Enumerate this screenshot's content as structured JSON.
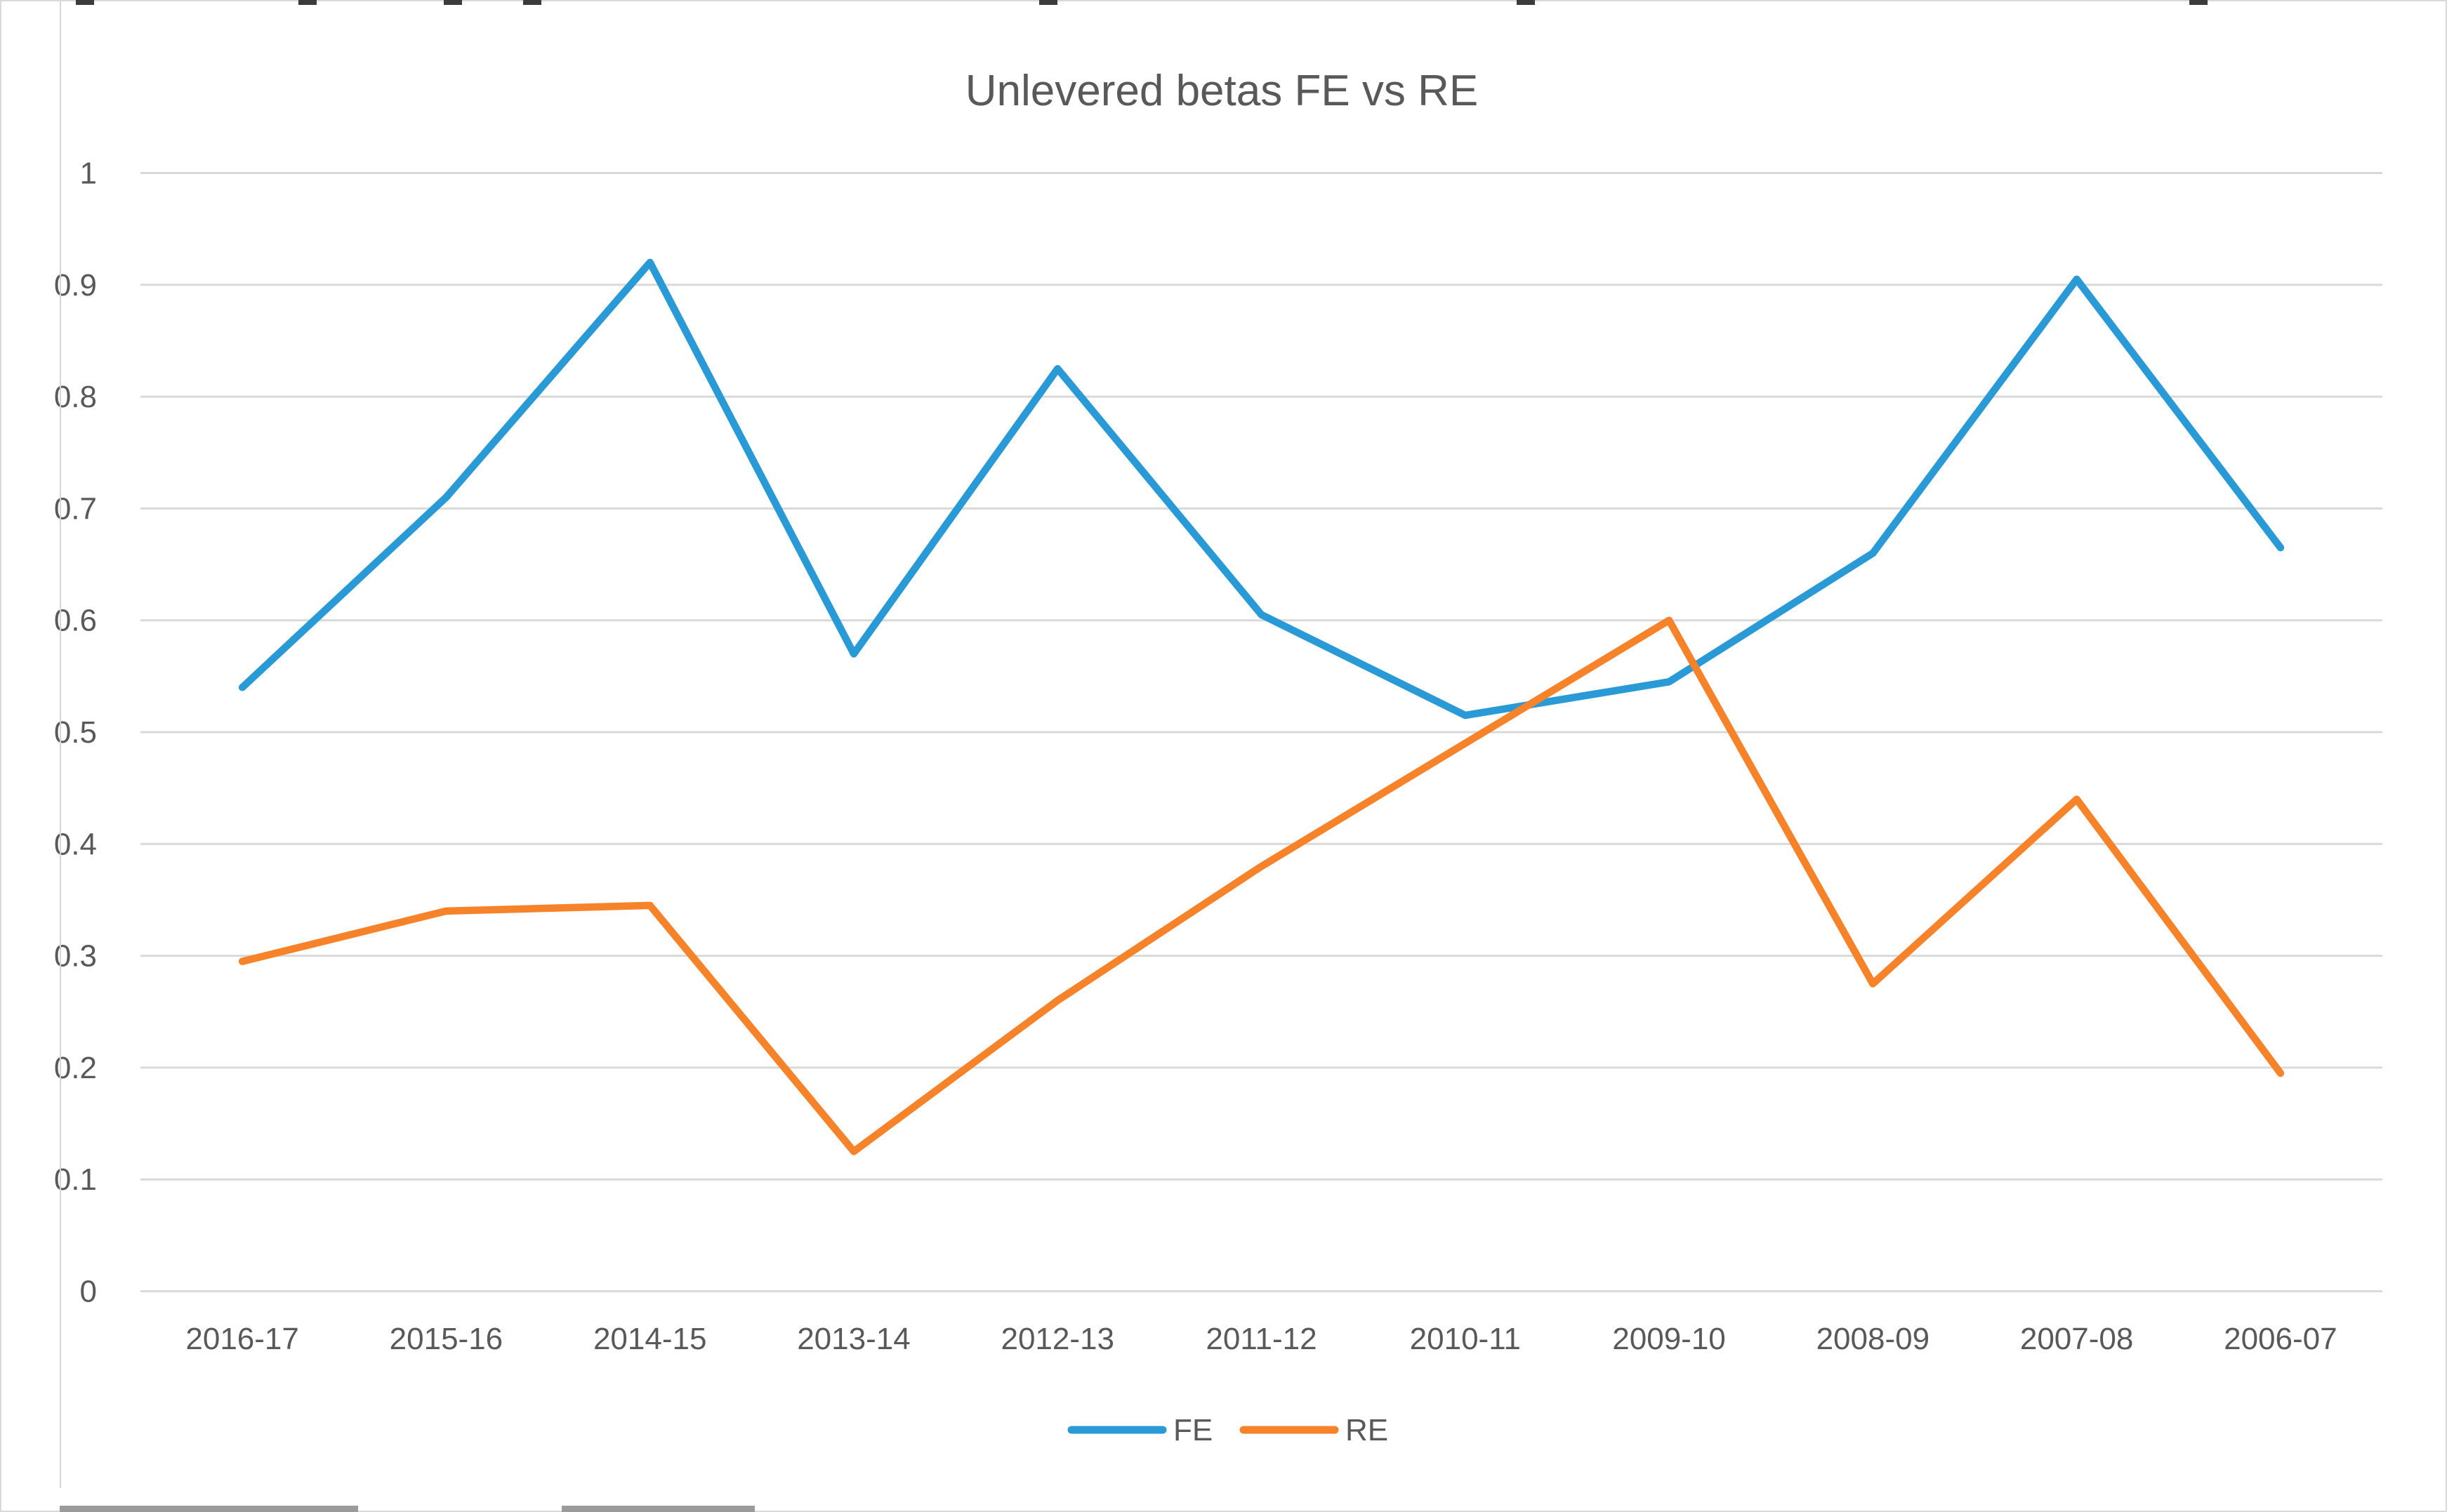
{
  "window": {
    "type": "spreadsheet-chart-screenshot"
  },
  "chart_data": {
    "type": "line",
    "title": "Unlevered betas FE vs RE",
    "xlabel": "",
    "ylabel": "",
    "categories": [
      "2016-17",
      "2015-16",
      "2014-15",
      "2013-14",
      "2012-13",
      "2011-12",
      "2010-11",
      "2009-10",
      "2008-09",
      "2007-08",
      "2006-07"
    ],
    "series": [
      {
        "name": "FE",
        "color": "#299AD6",
        "values": [
          0.54,
          0.71,
          0.92,
          0.57,
          0.825,
          0.605,
          0.515,
          0.545,
          0.66,
          0.905,
          0.665
        ]
      },
      {
        "name": "RE",
        "color": "#F6822A",
        "values": [
          0.295,
          0.34,
          0.345,
          0.125,
          0.26,
          0.38,
          0.49,
          0.6,
          0.275,
          0.44,
          0.195
        ]
      }
    ],
    "ylim": [
      0,
      1
    ],
    "yticks": [
      0,
      0.1,
      0.2,
      0.3,
      0.4,
      0.5,
      0.6,
      0.7,
      0.8,
      0.9,
      1
    ],
    "ytick_labels": [
      "0",
      "0.1",
      "0.2",
      "0.3",
      "0.4",
      "0.5",
      "0.6",
      "0.7",
      "0.8",
      "0.9",
      "1"
    ],
    "grid": true,
    "grid_color": "#d9d9d9",
    "text_color": "#595959",
    "legend_position": "bottom"
  }
}
